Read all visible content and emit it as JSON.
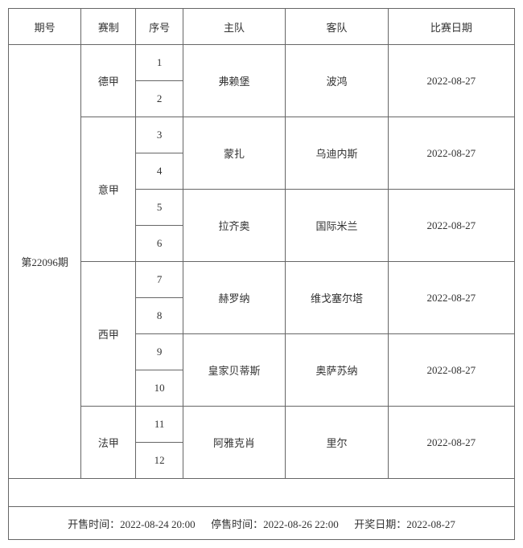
{
  "headers": {
    "period": "期号",
    "league": "赛制",
    "seq": "序号",
    "home": "主队",
    "away": "客队",
    "date": "比赛日期"
  },
  "period": "第22096期",
  "matches": [
    {
      "league": "德甲",
      "seq1": "1",
      "seq2": "2",
      "home": "弗赖堡",
      "away": "波鸿",
      "date": "2022-08-27"
    },
    {
      "league": "意甲",
      "seq1": "3",
      "seq2": "4",
      "home": "蒙扎",
      "away": "乌迪内斯",
      "date": "2022-08-27"
    },
    {
      "league": "意甲",
      "seq1": "5",
      "seq2": "6",
      "home": "拉齐奥",
      "away": "国际米兰",
      "date": "2022-08-27"
    },
    {
      "league": "西甲",
      "seq1": "7",
      "seq2": "8",
      "home": "赫罗纳",
      "away": "维戈塞尔塔",
      "date": "2022-08-27"
    },
    {
      "league": "西甲",
      "seq1": "9",
      "seq2": "10",
      "home": "皇家贝蒂斯",
      "away": "奥萨苏纳",
      "date": "2022-08-27"
    },
    {
      "league": "法甲",
      "seq1": "11",
      "seq2": "12",
      "home": "阿雅克肖",
      "away": "里尔",
      "date": "2022-08-27"
    }
  ],
  "footer": {
    "sale_start_label": "开售时间：",
    "sale_start": "2022-08-24 20:00",
    "sale_end_label": "停售时间：",
    "sale_end": "2022-08-26 22:00",
    "draw_date_label": "开奖日期：",
    "draw_date": "2022-08-27"
  }
}
